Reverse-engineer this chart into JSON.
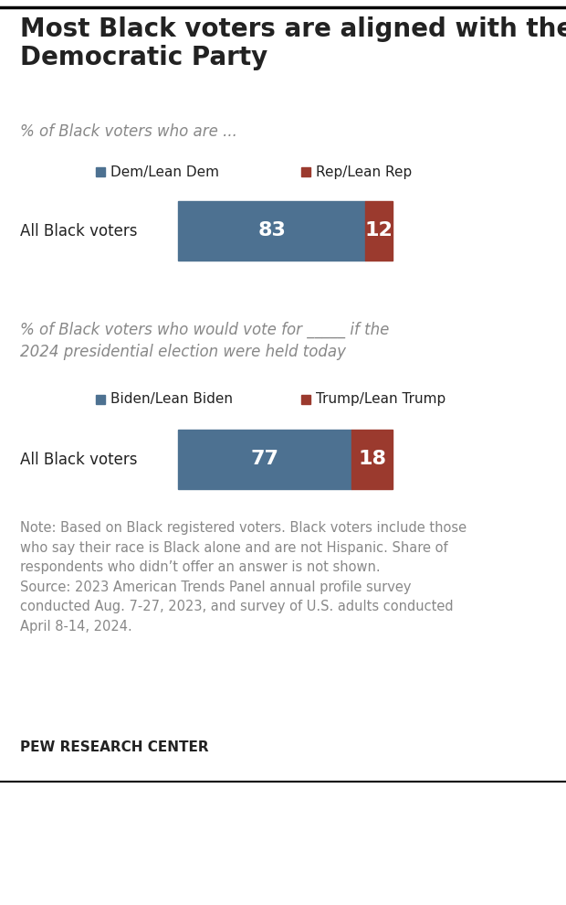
{
  "title": "Most Black voters are aligned with the\nDemocratic Party",
  "subtitle1": "% of Black voters who are ...",
  "subtitle2": "% of Black voters who would vote for _____ if the\n2024 presidential election were held today",
  "legend1": [
    "Dem/Lean Dem",
    "Rep/Lean Rep"
  ],
  "legend2": [
    "Biden/Lean Biden",
    "Trump/Lean Trump"
  ],
  "chart1": {
    "label": "All Black voters",
    "dem_val": 83,
    "rep_val": 12
  },
  "chart2": {
    "label": "All Black voters",
    "biden_val": 77,
    "trump_val": 18
  },
  "dem_color": "#4d7191",
  "rep_color": "#9b3a2e",
  "biden_color": "#4d7191",
  "trump_color": "#9b3a2e",
  "note_text": "Note: Based on Black registered voters. Black voters include those\nwho say their race is Black alone and are not Hispanic. Share of\nrespondents who didn’t offer an answer is not shown.\nSource: 2023 American Trends Panel annual profile survey\nconducted Aug. 7-27, 2023, and survey of U.S. adults conducted\nApril 8-14, 2024.",
  "footer": "PEW RESEARCH CENTER",
  "bg_color": "#ffffff",
  "text_color": "#222222",
  "note_color": "#888888",
  "title_fontsize": 20,
  "subtitle_fontsize": 12,
  "label_fontsize": 12,
  "legend_fontsize": 11,
  "bar_value_fontsize": 16,
  "note_fontsize": 10.5
}
